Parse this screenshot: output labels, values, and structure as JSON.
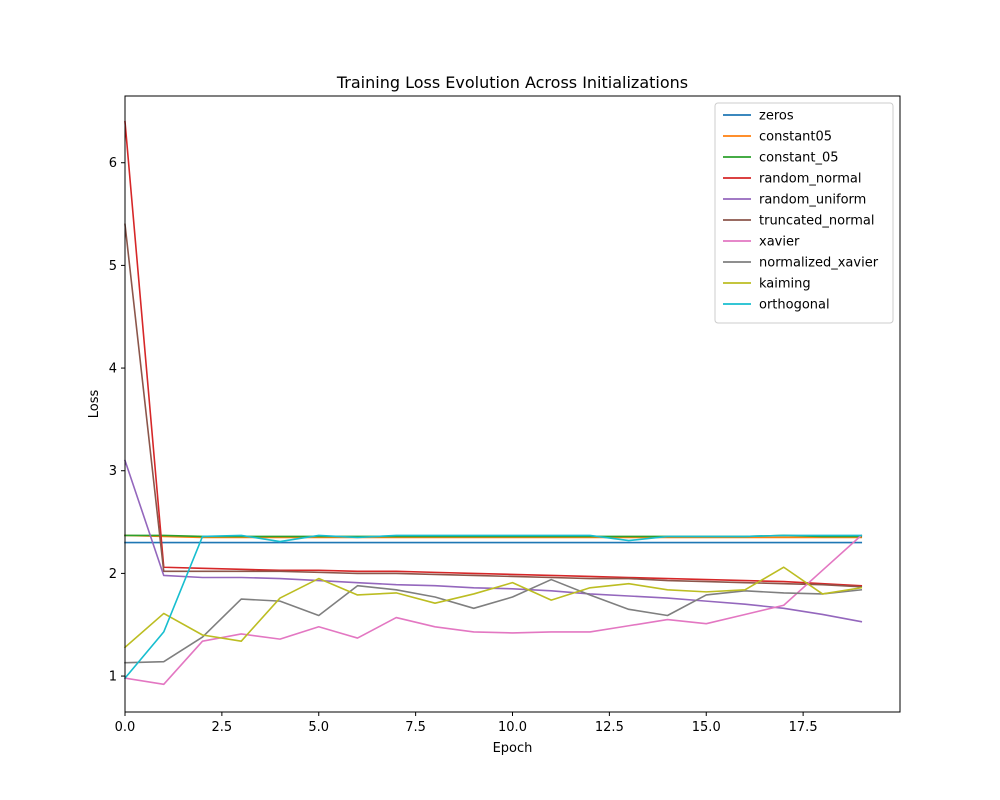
{
  "chart_data": {
    "type": "line",
    "title": "Training Loss Evolution Across Initializations",
    "xlabel": "Epoch",
    "ylabel": "Loss",
    "xlim": [
      0,
      20
    ],
    "ylim": [
      0.65,
      6.65
    ],
    "xticks": [
      0.0,
      2.5,
      5.0,
      7.5,
      10.0,
      12.5,
      15.0,
      17.5
    ],
    "xtick_labels": [
      "0.0",
      "2.5",
      "5.0",
      "7.5",
      "10.0",
      "12.5",
      "15.0",
      "17.5"
    ],
    "yticks": [
      1,
      2,
      3,
      4,
      5,
      6
    ],
    "ytick_labels": [
      "1",
      "2",
      "3",
      "4",
      "5",
      "6"
    ],
    "grid": false,
    "legend_position": "top-right",
    "x": [
      0,
      1,
      2,
      3,
      4,
      5,
      6,
      7,
      8,
      9,
      10,
      11,
      12,
      13,
      14,
      15,
      16,
      17,
      18,
      19
    ],
    "series": [
      {
        "name": "zeros",
        "color": "#1f77b4",
        "values": [
          2.3,
          2.3,
          2.3,
          2.3,
          2.3,
          2.3,
          2.3,
          2.3,
          2.3,
          2.3,
          2.3,
          2.3,
          2.3,
          2.3,
          2.3,
          2.3,
          2.3,
          2.3,
          2.3,
          2.3
        ]
      },
      {
        "name": "constant05",
        "color": "#ff7f0e",
        "values": [
          2.37,
          2.36,
          2.35,
          2.35,
          2.35,
          2.35,
          2.35,
          2.35,
          2.35,
          2.35,
          2.35,
          2.35,
          2.35,
          2.35,
          2.35,
          2.35,
          2.35,
          2.35,
          2.35,
          2.35
        ]
      },
      {
        "name": "constant_05",
        "color": "#2ca02c",
        "values": [
          2.37,
          2.37,
          2.36,
          2.36,
          2.36,
          2.36,
          2.36,
          2.36,
          2.36,
          2.36,
          2.36,
          2.36,
          2.36,
          2.36,
          2.36,
          2.36,
          2.36,
          2.37,
          2.36,
          2.36
        ]
      },
      {
        "name": "random_normal",
        "color": "#d62728",
        "values": [
          6.4,
          2.06,
          2.05,
          2.04,
          2.03,
          2.03,
          2.02,
          2.02,
          2.01,
          2.0,
          1.99,
          1.98,
          1.97,
          1.96,
          1.95,
          1.94,
          1.93,
          1.92,
          1.9,
          1.88
        ]
      },
      {
        "name": "random_uniform",
        "color": "#9467bd",
        "values": [
          3.1,
          1.98,
          1.96,
          1.96,
          1.95,
          1.93,
          1.91,
          1.89,
          1.88,
          1.86,
          1.85,
          1.83,
          1.8,
          1.78,
          1.76,
          1.73,
          1.7,
          1.66,
          1.6,
          1.53
        ]
      },
      {
        "name": "truncated_normal",
        "color": "#8c564b",
        "values": [
          5.4,
          2.02,
          2.02,
          2.02,
          2.02,
          2.01,
          2.0,
          2.0,
          1.99,
          1.98,
          1.97,
          1.96,
          1.95,
          1.95,
          1.93,
          1.92,
          1.91,
          1.9,
          1.89,
          1.87
        ]
      },
      {
        "name": "xavier",
        "color": "#e377c2",
        "values": [
          0.98,
          0.92,
          1.34,
          1.41,
          1.36,
          1.48,
          1.37,
          1.57,
          1.48,
          1.43,
          1.42,
          1.43,
          1.43,
          1.49,
          1.55,
          1.51,
          1.6,
          1.69,
          2.03,
          2.37
        ]
      },
      {
        "name": "normalized_xavier",
        "color": "#7f7f7f",
        "values": [
          1.13,
          1.14,
          1.38,
          1.75,
          1.73,
          1.59,
          1.88,
          1.84,
          1.77,
          1.66,
          1.77,
          1.94,
          1.79,
          1.65,
          1.59,
          1.79,
          1.83,
          1.81,
          1.8,
          1.84
        ]
      },
      {
        "name": "kaiming",
        "color": "#bcbd22",
        "values": [
          1.28,
          1.61,
          1.4,
          1.34,
          1.76,
          1.95,
          1.79,
          1.81,
          1.71,
          1.8,
          1.91,
          1.74,
          1.86,
          1.9,
          1.84,
          1.82,
          1.84,
          2.06,
          1.8,
          1.86
        ]
      },
      {
        "name": "orthogonal",
        "color": "#17becf",
        "values": [
          0.98,
          1.43,
          2.36,
          2.37,
          2.31,
          2.37,
          2.35,
          2.37,
          2.37,
          2.37,
          2.37,
          2.37,
          2.37,
          2.32,
          2.36,
          2.36,
          2.36,
          2.37,
          2.37,
          2.37
        ]
      }
    ]
  }
}
